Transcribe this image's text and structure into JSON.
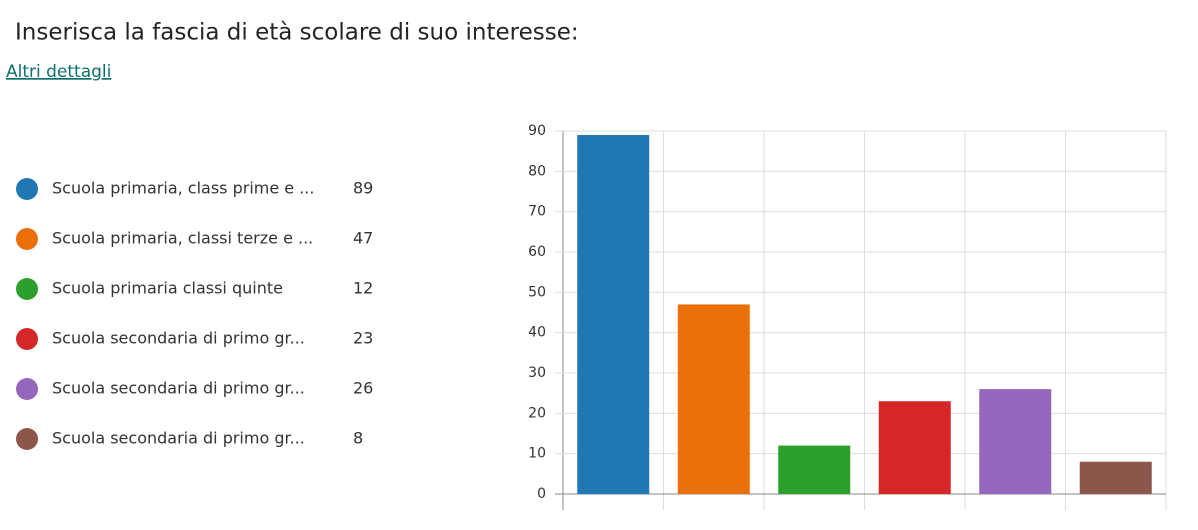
{
  "header": {
    "title": "Inserisca la fascia di età scolare di suo interesse:",
    "link": "Altri dettagli"
  },
  "chart_data": {
    "type": "bar",
    "categories": [
      "Scuola primaria, class prime e ...",
      "Scuola primaria, classi terze e ...",
      "Scuola primaria classi quinte",
      "Scuola secondaria di primo gr...",
      "Scuola secondaria di primo gr...",
      "Scuola secondaria di primo gr..."
    ],
    "values": [
      89,
      47,
      12,
      23,
      26,
      8
    ],
    "colors": [
      "#1f77b4",
      "#ea700b",
      "#2ca02c",
      "#d62728",
      "#9467bd",
      "#8c564b"
    ],
    "ylim": [
      0,
      90
    ],
    "yticks": [
      0,
      10,
      20,
      30,
      40,
      50,
      60,
      70,
      80,
      90
    ],
    "grid": true
  }
}
